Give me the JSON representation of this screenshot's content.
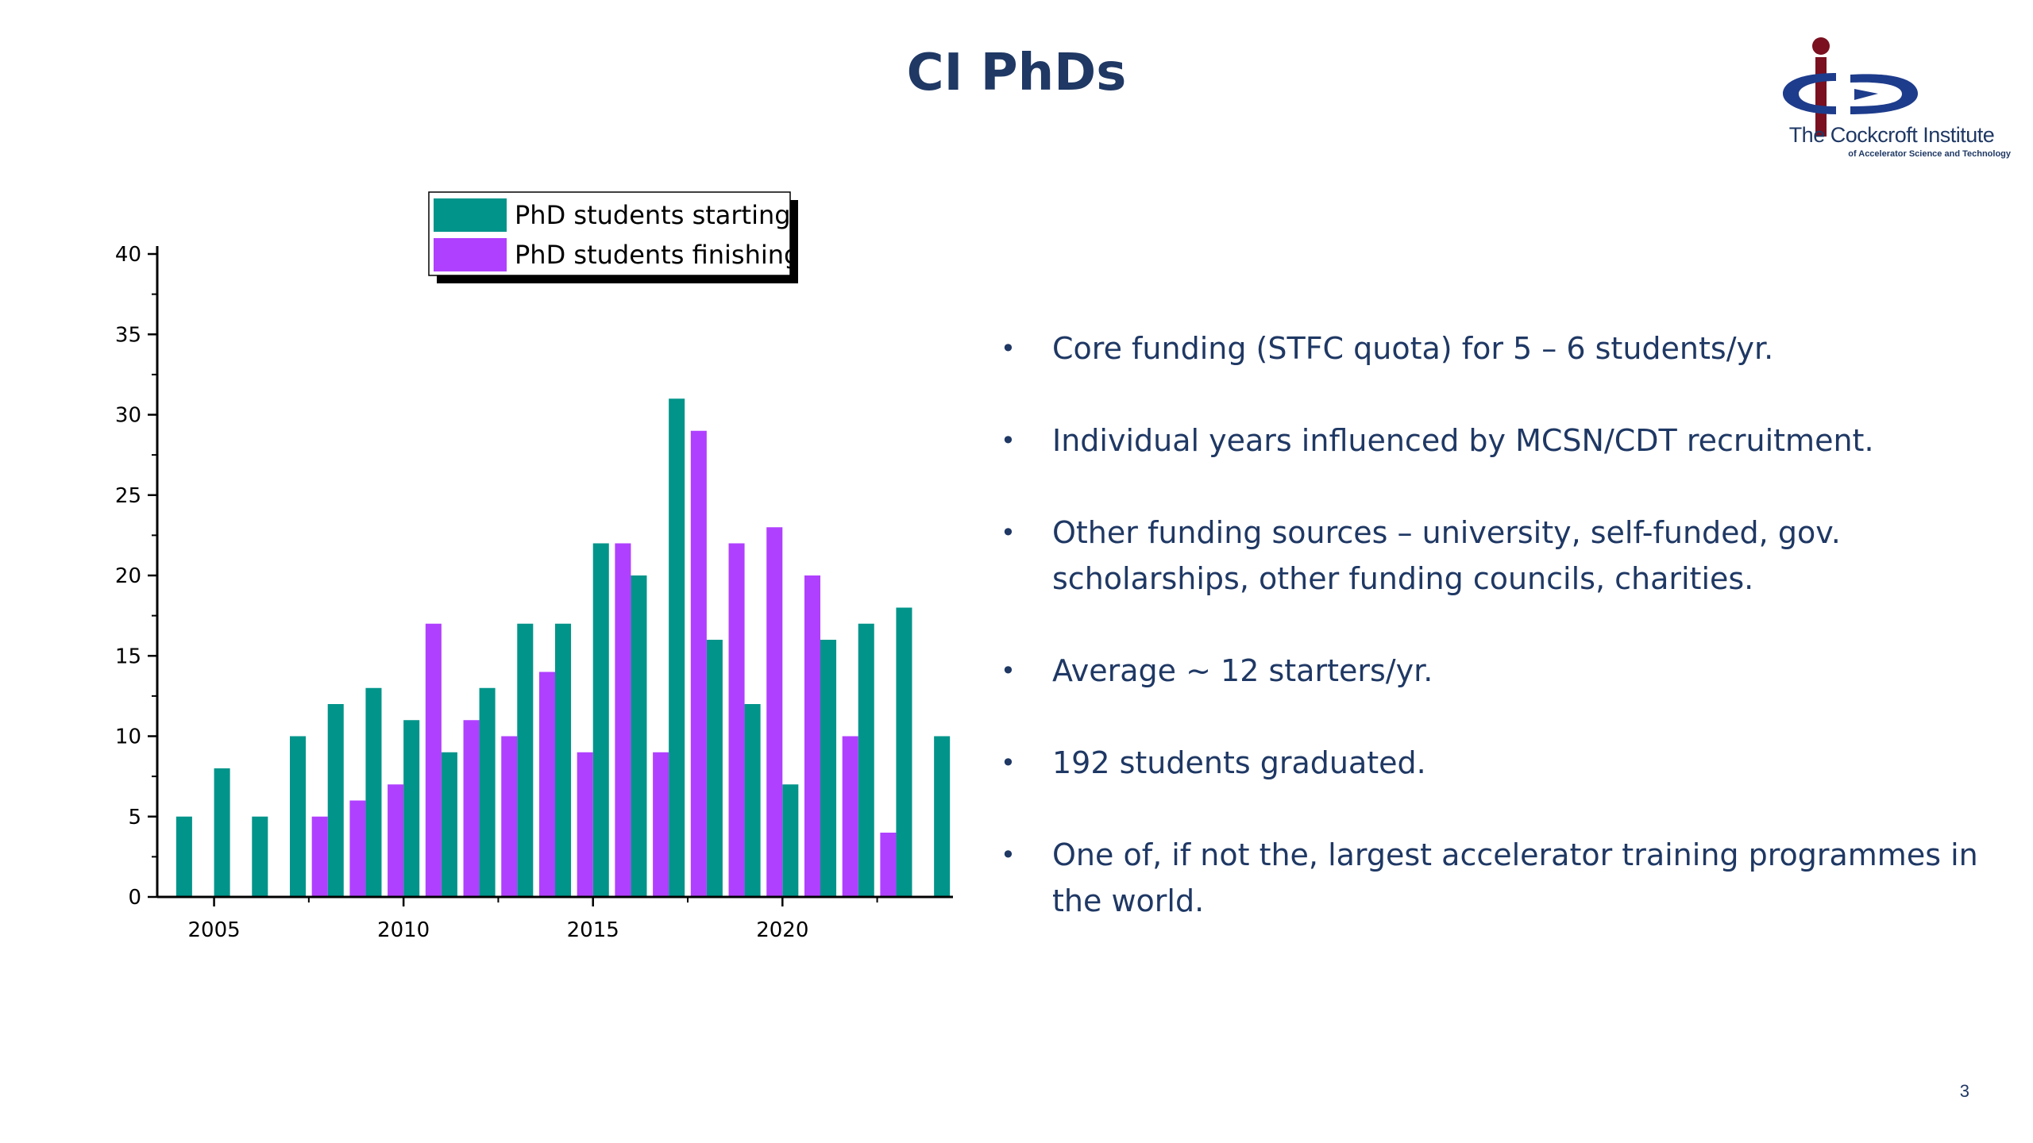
{
  "title": "CI PhDs",
  "logo": {
    "name": "The Cockcroft Institute",
    "subtitle": "of Accelerator Science and Technology",
    "colors": {
      "navy": "#1E3C8C",
      "maroon": "#7A1020"
    }
  },
  "bullets": [
    "Core funding (STFC quota) for 5 – 6 students/yr.",
    "Individual years influenced by MCSN/CDT recruitment.",
    "Other funding sources – university, self-funded, gov. scholarships, other funding councils, charities.",
    "Average ~ 12  starters/yr.",
    "192 students graduated.",
    "One of, if not the, largest accelerator training programmes in the world."
  ],
  "page_number": "3",
  "chart_data": {
    "type": "bar",
    "title": "",
    "xlabel": "",
    "ylabel": "",
    "x": [
      2004,
      2005,
      2006,
      2007,
      2008,
      2009,
      2010,
      2011,
      2012,
      2013,
      2014,
      2015,
      2016,
      2017,
      2018,
      2019,
      2020,
      2021,
      2022,
      2023,
      2024
    ],
    "xlim": [
      2003.5,
      2024.5
    ],
    "ylim": [
      0,
      40
    ],
    "yticks": [
      0,
      5,
      10,
      15,
      20,
      25,
      30,
      35,
      40
    ],
    "xticks": [
      2005,
      2010,
      2015,
      2020
    ],
    "legend_position": "top-center",
    "grid": false,
    "series": [
      {
        "name": "PhD students starting",
        "color": "#00948A",
        "values": [
          5,
          8,
          5,
          10,
          12,
          13,
          11,
          9,
          13,
          17,
          17,
          22,
          20,
          31,
          16,
          12,
          7,
          16,
          17,
          18,
          10
        ]
      },
      {
        "name": "PhD students finishing",
        "color": "#B040FF",
        "values": [
          0,
          0,
          0,
          0,
          5,
          6,
          7,
          17,
          11,
          10,
          14,
          9,
          22,
          9,
          29,
          22,
          23,
          20,
          10,
          4,
          0
        ]
      }
    ]
  }
}
